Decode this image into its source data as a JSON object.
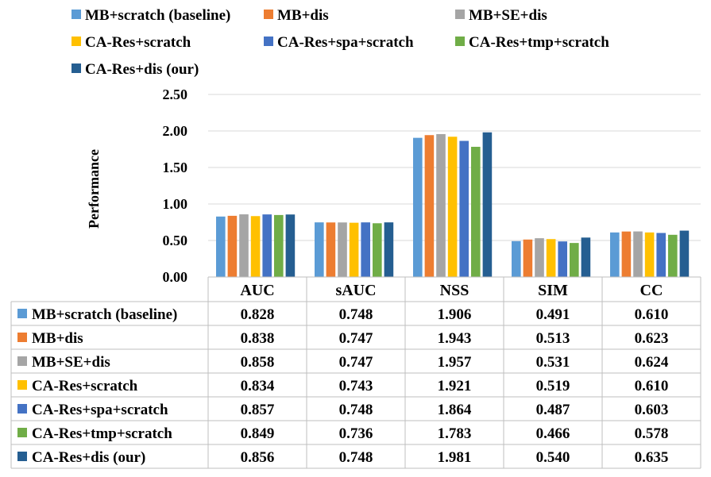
{
  "chart_data": {
    "type": "bar",
    "title": "",
    "xlabel": "",
    "ylabel": "Performance",
    "ylim": [
      0,
      2.5
    ],
    "yticks": [
      "0.00",
      "0.50",
      "1.00",
      "1.50",
      "2.00",
      "2.50"
    ],
    "grid": true,
    "legend_position": "top",
    "categories": [
      "AUC",
      "sAUC",
      "NSS",
      "SIM",
      "CC"
    ],
    "series": [
      {
        "name": "MB+scratch (baseline)",
        "color": "#5B9BD5",
        "values": [
          0.828,
          0.748,
          1.906,
          0.491,
          0.61
        ],
        "labels": [
          "0.828",
          "0.748",
          "1.906",
          "0.491",
          "0.610"
        ]
      },
      {
        "name": "MB+dis",
        "color": "#ED7D31",
        "values": [
          0.838,
          0.747,
          1.943,
          0.513,
          0.623
        ],
        "labels": [
          "0.838",
          "0.747",
          "1.943",
          "0.513",
          "0.623"
        ]
      },
      {
        "name": "MB+SE+dis",
        "color": "#A5A5A5",
        "values": [
          0.858,
          0.747,
          1.957,
          0.531,
          0.624
        ],
        "labels": [
          "0.858",
          "0.747",
          "1.957",
          "0.531",
          "0.624"
        ]
      },
      {
        "name": "CA-Res+scratch",
        "color": "#FFC000",
        "values": [
          0.834,
          0.743,
          1.921,
          0.519,
          0.61
        ],
        "labels": [
          "0.834",
          "0.743",
          "1.921",
          "0.519",
          "0.610"
        ]
      },
      {
        "name": "CA-Res+spa+scratch",
        "color": "#4472C4",
        "values": [
          0.857,
          0.748,
          1.864,
          0.487,
          0.603
        ],
        "labels": [
          "0.857",
          "0.748",
          "1.864",
          "0.487",
          "0.603"
        ]
      },
      {
        "name": "CA-Res+tmp+scratch",
        "color": "#70AD47",
        "values": [
          0.849,
          0.736,
          1.783,
          0.466,
          0.578
        ],
        "labels": [
          "0.849",
          "0.736",
          "1.783",
          "0.466",
          "0.578"
        ]
      },
      {
        "name": "CA-Res+dis (our)",
        "color": "#255E91",
        "values": [
          0.856,
          0.748,
          1.981,
          0.54,
          0.635
        ],
        "labels": [
          "0.856",
          "0.748",
          "1.981",
          "0.540",
          "0.635"
        ]
      }
    ]
  }
}
